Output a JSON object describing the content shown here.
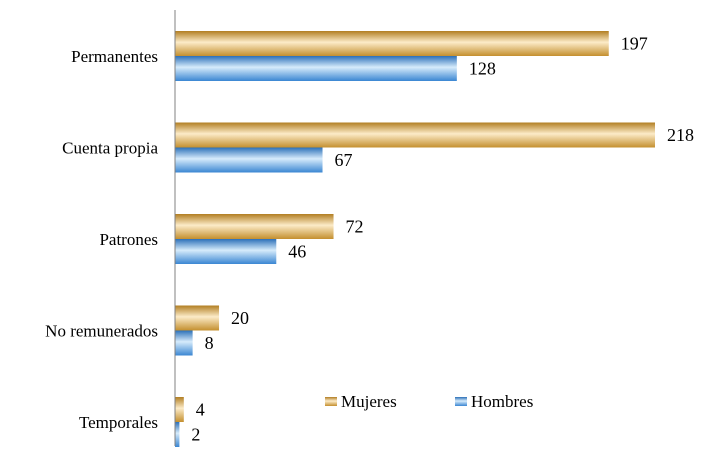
{
  "chart_data": {
    "type": "bar",
    "orientation": "horizontal",
    "categories": [
      "Permanentes",
      "Cuenta propia",
      "Patrones",
      "No remunerados",
      "Temporales"
    ],
    "series": [
      {
        "name": "Mujeres",
        "values": [
          197,
          218,
          72,
          20,
          4
        ],
        "color": "#E0A94A"
      },
      {
        "name": "Hombres",
        "values": [
          128,
          67,
          46,
          8,
          2
        ],
        "color": "#3F8FD8"
      }
    ],
    "xlim": [
      0,
      218
    ],
    "grid": false,
    "legend_position": "bottom-center",
    "title": "",
    "xlabel": "",
    "ylabel": ""
  }
}
